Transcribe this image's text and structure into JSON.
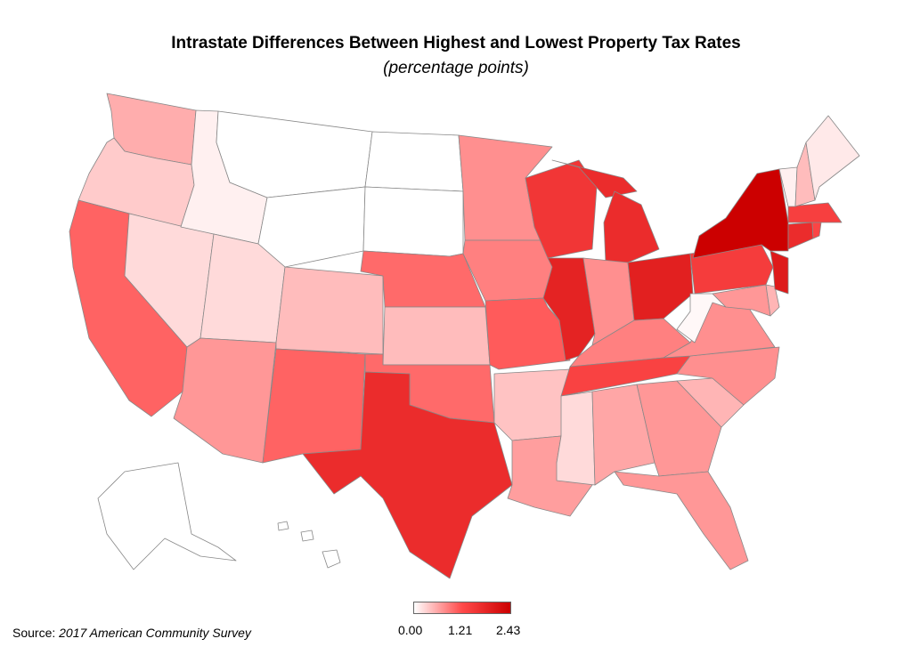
{
  "title": "Intrastate Differences Between Highest and Lowest Property Tax Rates",
  "subtitle": "(percentage points)",
  "source": {
    "label": "Source:",
    "value": "2017 American Community Survey"
  },
  "legend": {
    "ticks": [
      "0.00",
      "1.21",
      "2.43"
    ],
    "min": 0.0,
    "max": 2.43,
    "colors": [
      "#ffffff",
      "#ff4a4a",
      "#cc0000"
    ]
  },
  "map_data": {
    "type": "choropleth",
    "unit": "percentage points",
    "values_estimated": {
      "WA": 0.55,
      "OR": 0.35,
      "CA": 1.05,
      "NV": 0.25,
      "ID": 0.1,
      "MT": 0.0,
      "WY": 0.0,
      "UT": 0.25,
      "AZ": 0.7,
      "CO": 0.45,
      "NM": 1.05,
      "ND": 0.0,
      "SD": 0.0,
      "NE": 1.0,
      "KS": 0.45,
      "OK": 1.0,
      "TX": 1.7,
      "MN": 0.75,
      "IA": 0.85,
      "MO": 1.1,
      "AR": 0.4,
      "LA": 0.65,
      "WI": 1.55,
      "IL": 1.85,
      "MI": 1.7,
      "IN": 0.75,
      "OH": 1.9,
      "KY": 0.85,
      "TN": 1.35,
      "MS": 0.25,
      "AL": 0.6,
      "GA": 0.7,
      "FL": 0.7,
      "SC": 0.5,
      "NC": 0.75,
      "VA": 0.75,
      "WV": 0.05,
      "PA": 1.45,
      "NY": 2.43,
      "NJ": 2.0,
      "DE": 0.5,
      "MD": 0.7,
      "CT": 1.7,
      "RI": 1.3,
      "MA": 1.4,
      "VT": 0.1,
      "NH": 0.45,
      "ME": 0.15,
      "AK": 0.0,
      "HI": 0.0
    }
  }
}
